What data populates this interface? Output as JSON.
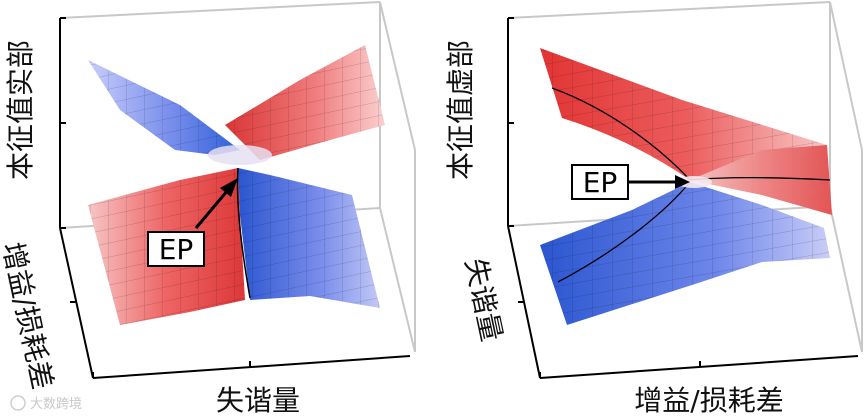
{
  "panels": [
    {
      "z_label": "本征值实部",
      "x_label": "失谐量",
      "y_label": "增益/损耗差",
      "marker": "EP"
    },
    {
      "z_label": "本征值虚部",
      "x_label": "增益/损耗差",
      "y_label": "失谐量",
      "marker": "EP"
    }
  ],
  "watermark": "大数跨境",
  "colors": {
    "upper_sheet": "#e03a3a",
    "lower_sheet": "#2f5fd8",
    "axis": "#000000",
    "box": "#c8c8c8"
  }
}
